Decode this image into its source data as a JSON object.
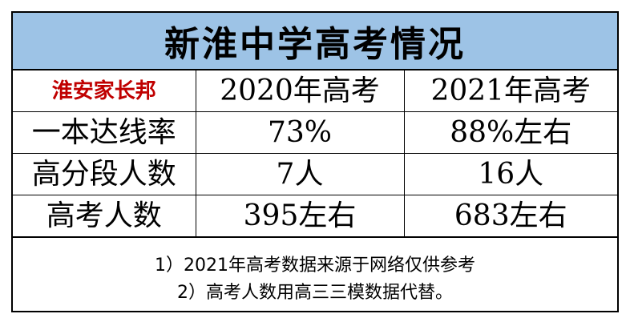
{
  "title": "新淮中学高考情况",
  "header": {
    "label": "淮安家长邦",
    "col_2020": "2020年高考",
    "col_2021": "2021年高考"
  },
  "rows": [
    {
      "label": "一本达线率",
      "v2020": "73%",
      "v2021": "88%左右"
    },
    {
      "label": "高分段人数",
      "v2020": "7人",
      "v2021": "16人"
    },
    {
      "label": "高考人数",
      "v2020": "395左右",
      "v2021": "683左右"
    }
  ],
  "notes": [
    "1）2021年高考数据来源于网络仅供参考",
    "2）高考人数用高三三模数据代替。"
  ],
  "colors": {
    "title_bg": "#9dc3e6",
    "watermark": "#c00000"
  }
}
